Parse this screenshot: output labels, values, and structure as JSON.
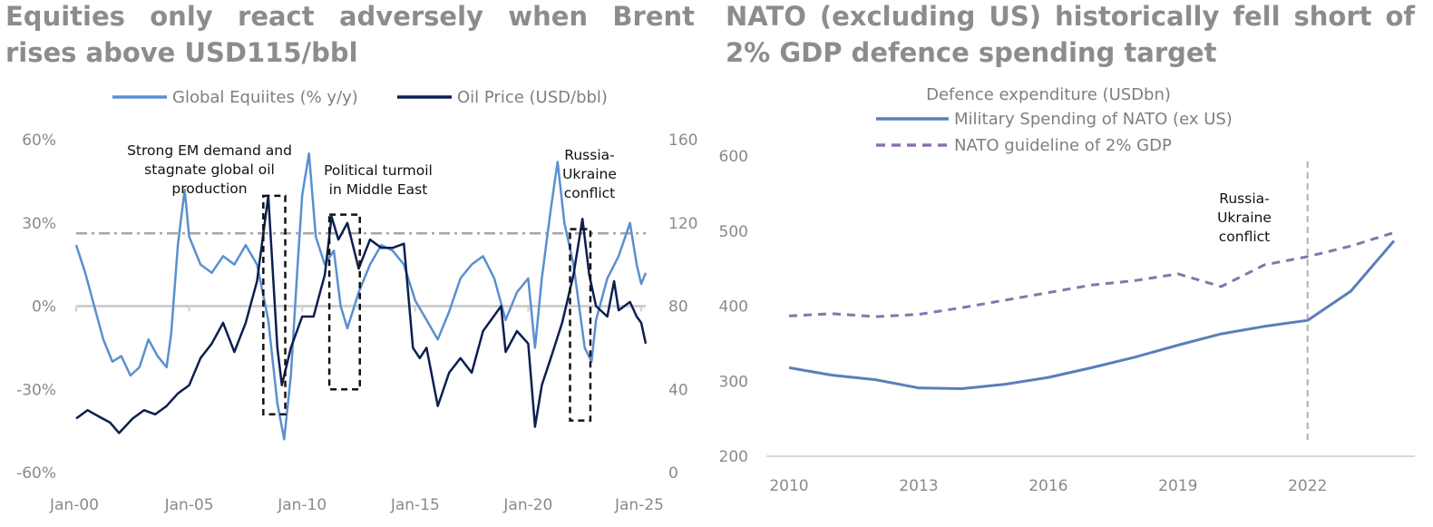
{
  "left_panel": {
    "title": "Equities only react adversely when Brent rises above USD115/bbl"
  },
  "right_panel": {
    "title": "NATO (excluding US) historically fell short of 2% GDP defence spending target"
  },
  "colors": {
    "equities": "#5b8fd0",
    "oil": "#0c1f4f",
    "threshold": "#a6a6a6",
    "military": "#5a7fb8",
    "guideline": "#8c72ad",
    "zero_line": "#d0d0d0",
    "grid": "#d9d9d9"
  },
  "chart_data": [
    {
      "type": "line",
      "legend": [
        "Global Equiites (% y/y)",
        "Oil Price (USD/bbl)"
      ],
      "x_ticks": [
        "Jan-00",
        "Jan-05",
        "Jan-10",
        "Jan-15",
        "Jan-20",
        "Jan-25"
      ],
      "y_left_ticks": [
        "60%",
        "30%",
        "0%",
        "-30%",
        "-60%"
      ],
      "y_right_ticks": [
        "160",
        "120",
        "80",
        "40",
        "0"
      ],
      "y_left_lim": [
        -60,
        60
      ],
      "y_right_lim": [
        0,
        160
      ],
      "threshold_usd_bbl": 115,
      "annotations": [
        [
          "Strong EM demand and",
          "stagnate global oil",
          "production"
        ],
        [
          "Political turmoil",
          "in Middle East"
        ],
        [
          "Russia-",
          "Ukraine",
          "conflict"
        ]
      ],
      "series": [
        {
          "name": "Global Equiites (% y/y)",
          "axis": "left",
          "points": [
            [
              2000.0,
              22
            ],
            [
              2000.4,
              12
            ],
            [
              2000.8,
              0
            ],
            [
              2001.2,
              -12
            ],
            [
              2001.6,
              -20
            ],
            [
              2002.0,
              -18
            ],
            [
              2002.4,
              -25
            ],
            [
              2002.8,
              -22
            ],
            [
              2003.2,
              -12
            ],
            [
              2003.6,
              -18
            ],
            [
              2004.0,
              -22
            ],
            [
              2004.2,
              -10
            ],
            [
              2004.5,
              22
            ],
            [
              2004.8,
              42
            ],
            [
              2005.0,
              25
            ],
            [
              2005.5,
              15
            ],
            [
              2006.0,
              12
            ],
            [
              2006.5,
              18
            ],
            [
              2007.0,
              15
            ],
            [
              2007.5,
              22
            ],
            [
              2008.0,
              15
            ],
            [
              2008.5,
              -5
            ],
            [
              2008.9,
              -35
            ],
            [
              2009.2,
              -48
            ],
            [
              2009.5,
              -25
            ],
            [
              2009.8,
              15
            ],
            [
              2010.0,
              40
            ],
            [
              2010.3,
              55
            ],
            [
              2010.6,
              25
            ],
            [
              2011.0,
              15
            ],
            [
              2011.4,
              20
            ],
            [
              2011.7,
              0
            ],
            [
              2012.0,
              -8
            ],
            [
              2012.5,
              5
            ],
            [
              2013.0,
              15
            ],
            [
              2013.5,
              22
            ],
            [
              2014.0,
              20
            ],
            [
              2014.5,
              15
            ],
            [
              2015.0,
              2
            ],
            [
              2015.5,
              -5
            ],
            [
              2016.0,
              -12
            ],
            [
              2016.5,
              -2
            ],
            [
              2017.0,
              10
            ],
            [
              2017.5,
              15
            ],
            [
              2018.0,
              18
            ],
            [
              2018.5,
              10
            ],
            [
              2019.0,
              -5
            ],
            [
              2019.5,
              5
            ],
            [
              2020.0,
              10
            ],
            [
              2020.3,
              -15
            ],
            [
              2020.6,
              10
            ],
            [
              2021.0,
              35
            ],
            [
              2021.3,
              52
            ],
            [
              2021.6,
              30
            ],
            [
              2022.0,
              15
            ],
            [
              2022.5,
              -15
            ],
            [
              2022.8,
              -20
            ],
            [
              2023.0,
              -5
            ],
            [
              2023.5,
              10
            ],
            [
              2024.0,
              18
            ],
            [
              2024.5,
              30
            ],
            [
              2024.8,
              15
            ],
            [
              2025.0,
              8
            ],
            [
              2025.2,
              12
            ]
          ]
        },
        {
          "name": "Oil Price (USD/bbl)",
          "axis": "right",
          "points": [
            [
              2000.0,
              26
            ],
            [
              2000.5,
              30
            ],
            [
              2001.0,
              27
            ],
            [
              2001.5,
              24
            ],
            [
              2001.9,
              19
            ],
            [
              2002.5,
              26
            ],
            [
              2003.0,
              30
            ],
            [
              2003.5,
              28
            ],
            [
              2004.0,
              32
            ],
            [
              2004.5,
              38
            ],
            [
              2005.0,
              42
            ],
            [
              2005.5,
              55
            ],
            [
              2006.0,
              62
            ],
            [
              2006.5,
              72
            ],
            [
              2007.0,
              58
            ],
            [
              2007.5,
              72
            ],
            [
              2008.0,
              92
            ],
            [
              2008.5,
              133
            ],
            [
              2008.9,
              60
            ],
            [
              2009.1,
              42
            ],
            [
              2009.5,
              60
            ],
            [
              2010.0,
              75
            ],
            [
              2010.5,
              75
            ],
            [
              2011.0,
              95
            ],
            [
              2011.3,
              123
            ],
            [
              2011.6,
              112
            ],
            [
              2012.0,
              120
            ],
            [
              2012.5,
              98
            ],
            [
              2013.0,
              112
            ],
            [
              2013.5,
              108
            ],
            [
              2014.0,
              108
            ],
            [
              2014.5,
              110
            ],
            [
              2014.9,
              60
            ],
            [
              2015.2,
              55
            ],
            [
              2015.5,
              60
            ],
            [
              2016.0,
              32
            ],
            [
              2016.5,
              48
            ],
            [
              2017.0,
              55
            ],
            [
              2017.5,
              48
            ],
            [
              2018.0,
              68
            ],
            [
              2018.8,
              80
            ],
            [
              2019.0,
              58
            ],
            [
              2019.5,
              68
            ],
            [
              2020.0,
              62
            ],
            [
              2020.3,
              22
            ],
            [
              2020.6,
              42
            ],
            [
              2021.0,
              55
            ],
            [
              2021.5,
              72
            ],
            [
              2022.0,
              95
            ],
            [
              2022.4,
              122
            ],
            [
              2022.7,
              95
            ],
            [
              2023.0,
              80
            ],
            [
              2023.5,
              75
            ],
            [
              2023.8,
              92
            ],
            [
              2024.0,
              78
            ],
            [
              2024.5,
              82
            ],
            [
              2024.8,
              75
            ],
            [
              2025.0,
              72
            ],
            [
              2025.2,
              62
            ]
          ]
        }
      ]
    },
    {
      "type": "line",
      "title": "Defence expenditure (USDbn)",
      "legend": [
        "Military Spending of NATO (ex US)",
        "NATO guideline of 2% GDP"
      ],
      "x_ticks": [
        "2010",
        "2013",
        "2016",
        "2019",
        "2022"
      ],
      "y_ticks": [
        "600",
        "500",
        "400",
        "300",
        "200"
      ],
      "ylim": [
        200,
        600
      ],
      "annotation": [
        "Russia-",
        "Ukraine",
        "conflict"
      ],
      "series": [
        {
          "name": "Military Spending of NATO (ex US)",
          "x": [
            2010,
            2011,
            2012,
            2013,
            2014,
            2015,
            2016,
            2017,
            2018,
            2019,
            2020,
            2021,
            2022,
            2023,
            2024
          ],
          "y": [
            318,
            308,
            302,
            291,
            290,
            296,
            305,
            318,
            332,
            348,
            363,
            373,
            381,
            420,
            487
          ]
        },
        {
          "name": "NATO guideline of 2% GDP",
          "x": [
            2010,
            2011,
            2012,
            2013,
            2014,
            2015,
            2016,
            2017,
            2018,
            2019,
            2020,
            2021,
            2022,
            2023,
            2024
          ],
          "y": [
            387,
            390,
            386,
            389,
            398,
            408,
            418,
            428,
            434,
            443,
            426,
            455,
            466,
            480,
            498
          ]
        }
      ]
    }
  ]
}
